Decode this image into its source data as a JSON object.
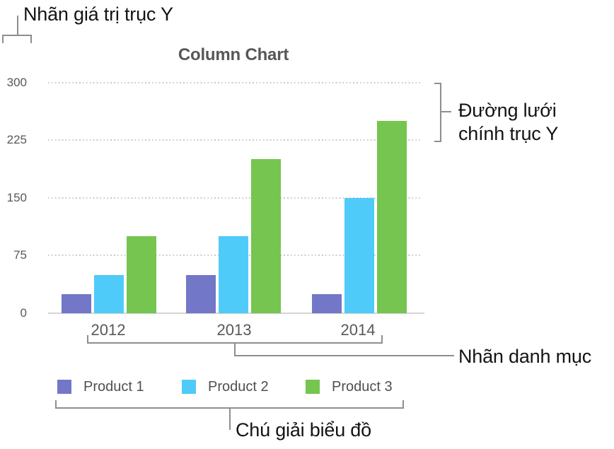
{
  "annotations": {
    "y_value_label": "Nhãn giá trị trục Y",
    "gridline_label": "Đường lưới\nchính trục Y",
    "category_label": "Nhãn danh mục",
    "legend_label": "Chú giải biểu đồ"
  },
  "chart_data": {
    "type": "bar",
    "title": "Column Chart",
    "categories": [
      "2012",
      "2013",
      "2014"
    ],
    "series": [
      {
        "name": "Product 1",
        "color": "#7277c8",
        "values": [
          25,
          50,
          25
        ]
      },
      {
        "name": "Product 2",
        "color": "#4fcbfa",
        "values": [
          50,
          100,
          150
        ]
      },
      {
        "name": "Product 3",
        "color": "#75c550",
        "values": [
          100,
          200,
          250
        ]
      }
    ],
    "xlabel": "",
    "ylabel": "",
    "ylim": [
      0,
      300
    ],
    "yticks": [
      0,
      75,
      150,
      225,
      300
    ],
    "grid": "horizontal-dotted",
    "legend_position": "bottom"
  },
  "colors": {
    "annotation_text": "#141414",
    "bracket": "#8e8e8e",
    "gridline": "#c8c8c8",
    "axis_line": "#d5d5d5",
    "tick_text": "#58585a",
    "legend_text": "#4f4f4f",
    "title_text": "#57575a"
  }
}
